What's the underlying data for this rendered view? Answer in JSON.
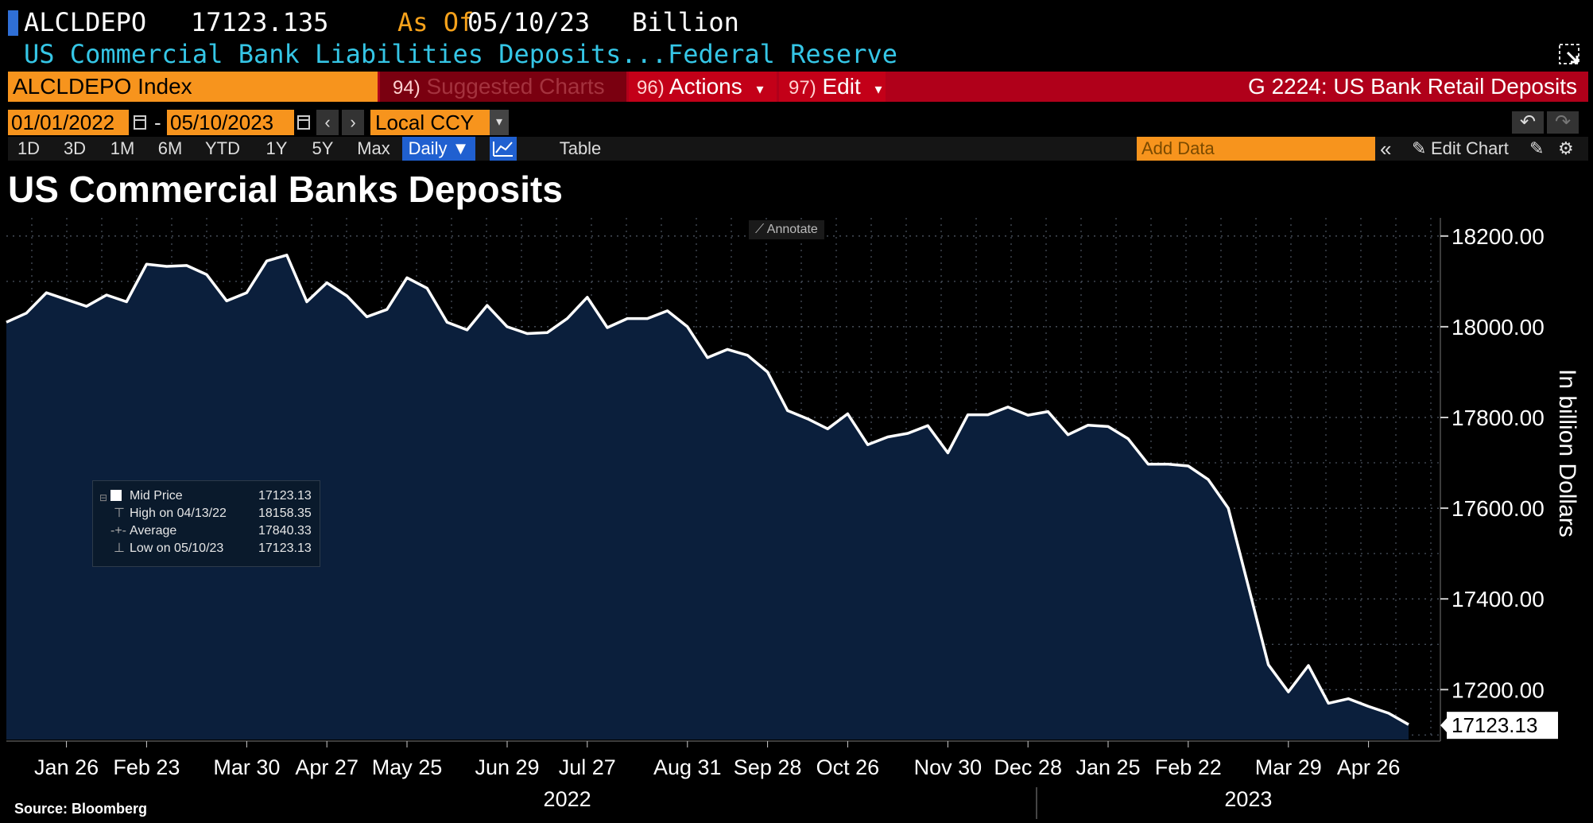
{
  "header": {
    "ticker": "ALCLDEPO",
    "last_value": "17123.135",
    "as_of_label": "As Of",
    "as_of_date": "05/10/23",
    "unit": "Billion",
    "description": "US Commercial Bank Liabilities Deposits...",
    "source": "Federal Reserve"
  },
  "command_bar": {
    "security": "ALCLDEPO Index",
    "suggested_num": "94)",
    "suggested_label": "Suggested Charts",
    "actions_num": "96)",
    "actions_label": "Actions",
    "edit_num": "97)",
    "edit_label": "Edit",
    "group_title": "G 2224: US Bank Retail Deposits"
  },
  "date_row": {
    "start_date": "01/01/2022",
    "separator": "-",
    "end_date": "05/10/2023",
    "prev": "‹",
    "next": "›",
    "currency": "Local CCY"
  },
  "period_row": {
    "periods": [
      "1D",
      "3D",
      "1M",
      "6M",
      "YTD",
      "1Y",
      "5Y",
      "Max"
    ],
    "frequency": "Daily ▼",
    "table_label": "Table",
    "add_data_placeholder": "Add Data",
    "edit_chart_label": "Edit Chart"
  },
  "chart_title": "US Commercial Banks Deposits",
  "annotate_label": "Annotate",
  "legend": {
    "items": [
      {
        "name": "Mid Price",
        "value": "17123.13"
      },
      {
        "name": "High on 04/13/22",
        "value": "18158.35"
      },
      {
        "name": "Average",
        "value": "17840.33"
      },
      {
        "name": "Low on 05/10/23",
        "value": "17123.13"
      }
    ]
  },
  "chart_data": {
    "type": "area",
    "title": "US Commercial Banks Deposits",
    "ylabel": "In billion Dollars",
    "ylim": [
      17090,
      18240
    ],
    "yticks": [
      17200,
      17400,
      17600,
      17800,
      18000,
      18200
    ],
    "ytick_labels": [
      "17200.00",
      "17400.00",
      "17600.00",
      "17800.00",
      "18000.00",
      "18200.00"
    ],
    "last_value_label": "17123.13",
    "x_range": [
      "2022-01-05",
      "2023-05-10"
    ],
    "xticks": [
      {
        "date": "2022-01-26",
        "label": "Jan 26"
      },
      {
        "date": "2022-02-23",
        "label": "Feb 23"
      },
      {
        "date": "2022-03-30",
        "label": "Mar 30"
      },
      {
        "date": "2022-04-27",
        "label": "Apr 27"
      },
      {
        "date": "2022-05-25",
        "label": "May 25"
      },
      {
        "date": "2022-06-29",
        "label": "Jun 29"
      },
      {
        "date": "2022-07-27",
        "label": "Jul 27"
      },
      {
        "date": "2022-08-31",
        "label": "Aug 31"
      },
      {
        "date": "2022-09-28",
        "label": "Sep 28"
      },
      {
        "date": "2022-10-26",
        "label": "Oct 26"
      },
      {
        "date": "2022-11-30",
        "label": "Nov 30"
      },
      {
        "date": "2022-12-28",
        "label": "Dec 28"
      },
      {
        "date": "2023-01-25",
        "label": "Jan 25"
      },
      {
        "date": "2023-02-22",
        "label": "Feb 22"
      },
      {
        "date": "2023-03-29",
        "label": "Mar 29"
      },
      {
        "date": "2023-04-26",
        "label": "Apr 26"
      }
    ],
    "year_labels": [
      {
        "date": "2022-07-20",
        "label": "2022"
      },
      {
        "date": "2023-03-15",
        "label": "2023"
      }
    ],
    "year_divider_date": "2022-12-31",
    "grid": true,
    "series": [
      {
        "values": [
          [
            "2022-01-05",
            18010
          ],
          [
            "2022-01-12",
            18030
          ],
          [
            "2022-01-19",
            18075
          ],
          [
            "2022-01-26",
            18060
          ],
          [
            "2022-02-02",
            18045
          ],
          [
            "2022-02-09",
            18070
          ],
          [
            "2022-02-16",
            18055
          ],
          [
            "2022-02-23",
            18138
          ],
          [
            "2022-03-02",
            18133
          ],
          [
            "2022-03-09",
            18135
          ],
          [
            "2022-03-16",
            18115
          ],
          [
            "2022-03-23",
            18057
          ],
          [
            "2022-03-30",
            18075
          ],
          [
            "2022-04-06",
            18145
          ],
          [
            "2022-04-13",
            18158
          ],
          [
            "2022-04-20",
            18055
          ],
          [
            "2022-04-27",
            18097
          ],
          [
            "2022-05-04",
            18068
          ],
          [
            "2022-05-11",
            18022
          ],
          [
            "2022-05-18",
            18038
          ],
          [
            "2022-05-25",
            18108
          ],
          [
            "2022-06-01",
            18085
          ],
          [
            "2022-06-08",
            18010
          ],
          [
            "2022-06-15",
            17993
          ],
          [
            "2022-06-22",
            18047
          ],
          [
            "2022-06-29",
            18000
          ],
          [
            "2022-07-06",
            17985
          ],
          [
            "2022-07-13",
            17987
          ],
          [
            "2022-07-20",
            18018
          ],
          [
            "2022-07-27",
            18065
          ],
          [
            "2022-08-03",
            17998
          ],
          [
            "2022-08-10",
            18018
          ],
          [
            "2022-08-17",
            18018
          ],
          [
            "2022-08-24",
            18035
          ],
          [
            "2022-08-31",
            18000
          ],
          [
            "2022-09-07",
            17932
          ],
          [
            "2022-09-14",
            17950
          ],
          [
            "2022-09-21",
            17937
          ],
          [
            "2022-09-28",
            17900
          ],
          [
            "2022-10-05",
            17815
          ],
          [
            "2022-10-12",
            17797
          ],
          [
            "2022-10-19",
            17775
          ],
          [
            "2022-10-26",
            17808
          ],
          [
            "2022-11-02",
            17740
          ],
          [
            "2022-11-09",
            17757
          ],
          [
            "2022-11-16",
            17765
          ],
          [
            "2022-11-23",
            17782
          ],
          [
            "2022-11-30",
            17722
          ],
          [
            "2022-12-07",
            17806
          ],
          [
            "2022-12-14",
            17806
          ],
          [
            "2022-12-21",
            17823
          ],
          [
            "2022-12-28",
            17805
          ],
          [
            "2023-01-04",
            17813
          ],
          [
            "2023-01-11",
            17762
          ],
          [
            "2023-01-18",
            17783
          ],
          [
            "2023-01-25",
            17780
          ],
          [
            "2023-02-01",
            17753
          ],
          [
            "2023-02-08",
            17697
          ],
          [
            "2023-02-15",
            17697
          ],
          [
            "2023-02-22",
            17693
          ],
          [
            "2023-03-01",
            17663
          ],
          [
            "2023-03-08",
            17600
          ],
          [
            "2023-03-15",
            17428
          ],
          [
            "2023-03-22",
            17255
          ],
          [
            "2023-03-29",
            17195
          ],
          [
            "2023-04-05",
            17253
          ],
          [
            "2023-04-12",
            17170
          ],
          [
            "2023-04-19",
            17180
          ],
          [
            "2023-04-26",
            17163
          ],
          [
            "2023-05-03",
            17148
          ],
          [
            "2023-05-10",
            17123
          ]
        ]
      }
    ]
  },
  "footer": {
    "source": "Source: Bloomberg"
  },
  "colors": {
    "background": "#000000",
    "area_fill": "#0b1f3c",
    "line": "#ffffff",
    "accent_orange": "#f7941d",
    "command_red": "#b0001a",
    "cyan_text": "#35c6e6",
    "selected_blue": "#2060d0"
  }
}
